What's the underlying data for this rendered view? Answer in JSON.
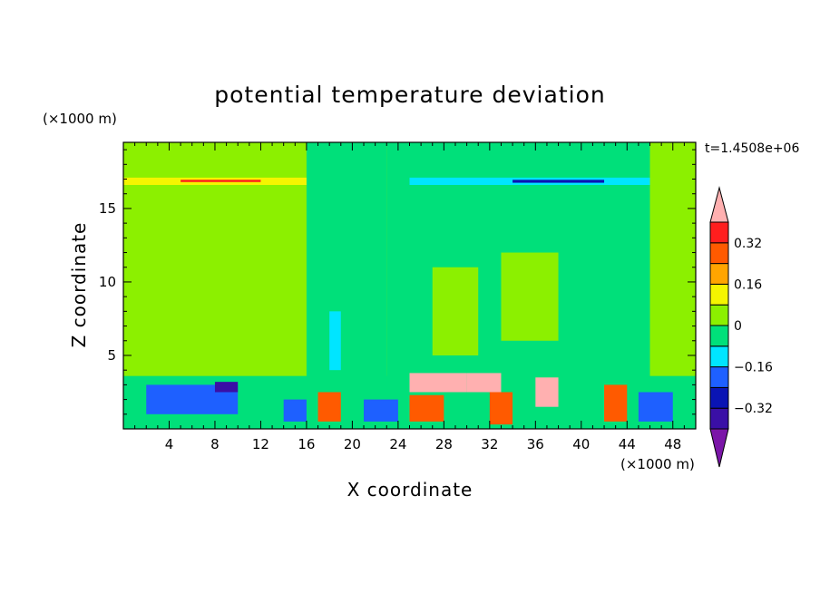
{
  "chart_data": {
    "type": "heatmap",
    "title": "potential temperature deviation",
    "xlabel": "X coordinate",
    "ylabel": "Z coordinate",
    "x_unit": "(×1000 m)",
    "y_unit": "(×1000 m)",
    "time_label": "t=1.4508e+06",
    "xlim": [
      0,
      50
    ],
    "ylim": [
      0,
      19.5
    ],
    "x_ticks": [
      {
        "value": 4,
        "label": "4"
      },
      {
        "value": 8,
        "label": "8"
      },
      {
        "value": 12,
        "label": "12"
      },
      {
        "value": 16,
        "label": "16"
      },
      {
        "value": 20,
        "label": "20"
      },
      {
        "value": 24,
        "label": "24"
      },
      {
        "value": 28,
        "label": "28"
      },
      {
        "value": 32,
        "label": "32"
      },
      {
        "value": 36,
        "label": "36"
      },
      {
        "value": 40,
        "label": "40"
      },
      {
        "value": 44,
        "label": "44"
      },
      {
        "value": 48,
        "label": "48"
      }
    ],
    "y_ticks": [
      {
        "value": 5,
        "label": "5"
      },
      {
        "value": 10,
        "label": "10"
      },
      {
        "value": 15,
        "label": "15"
      }
    ],
    "colorbar": {
      "levels": [
        -0.4,
        -0.32,
        -0.24,
        -0.16,
        -0.08,
        0,
        0.08,
        0.16,
        0.24,
        0.32,
        0.4
      ],
      "labels": [
        {
          "value": 0.32,
          "label": "0.32"
        },
        {
          "value": 0.16,
          "label": "0.16"
        },
        {
          "value": 0,
          "label": "0"
        },
        {
          "value": -0.16,
          "label": "−0.16"
        },
        {
          "value": -0.32,
          "label": "−0.32"
        }
      ],
      "colors": [
        "#7b16a8",
        "#3a0fa6",
        "#0a14b4",
        "#1e60ff",
        "#00e5ff",
        "#00e07a",
        "#8cf000",
        "#f5f500",
        "#ffa500",
        "#ff5a00",
        "#ff1e1e",
        "#ffb0b0"
      ]
    },
    "regions": [
      {
        "x": [
          0,
          50
        ],
        "y": [
          0,
          19.5
        ],
        "value": 0.04
      },
      {
        "x": [
          16,
          23
        ],
        "y": [
          3.5,
          19.5
        ],
        "value": -0.04
      },
      {
        "x": [
          23,
          46
        ],
        "y": [
          3.5,
          19.5
        ],
        "value": -0.04
      },
      {
        "x": [
          27,
          31
        ],
        "y": [
          5,
          11
        ],
        "value": 0.04
      },
      {
        "x": [
          33,
          38
        ],
        "y": [
          6,
          12
        ],
        "value": 0.04
      },
      {
        "x": [
          18,
          19
        ],
        "y": [
          4,
          8
        ],
        "value": -0.12
      },
      {
        "x": [
          0,
          16
        ],
        "y": [
          16.6,
          17.1
        ],
        "value": 0.12
      },
      {
        "x": [
          5,
          12
        ],
        "y": [
          16.8,
          16.95
        ],
        "value": 0.36
      },
      {
        "x": [
          25,
          46
        ],
        "y": [
          16.6,
          17.1
        ],
        "value": -0.12
      },
      {
        "x": [
          34,
          42
        ],
        "y": [
          16.75,
          16.95
        ],
        "value": -0.28
      },
      {
        "x": [
          0,
          50
        ],
        "y": [
          0,
          3.6
        ],
        "value": -0.06
      },
      {
        "x": [
          2,
          10
        ],
        "y": [
          1,
          3
        ],
        "value": -0.2
      },
      {
        "x": [
          8,
          10
        ],
        "y": [
          2.5,
          3.2
        ],
        "value": -0.36
      },
      {
        "x": [
          17,
          19
        ],
        "y": [
          0.5,
          2.5
        ],
        "value": 0.3
      },
      {
        "x": [
          25,
          28
        ],
        "y": [
          0.5,
          2.3
        ],
        "value": 0.3
      },
      {
        "x": [
          32,
          34
        ],
        "y": [
          0.3,
          2.5
        ],
        "value": 0.3
      },
      {
        "x": [
          25,
          30
        ],
        "y": [
          2.5,
          3.8
        ],
        "value": 0.4
      },
      {
        "x": [
          30,
          33
        ],
        "y": [
          2.5,
          3.8
        ],
        "value": 0.4
      },
      {
        "x": [
          36,
          38
        ],
        "y": [
          1.5,
          3.5
        ],
        "value": 0.4
      },
      {
        "x": [
          42,
          44
        ],
        "y": [
          0.5,
          3
        ],
        "value": 0.3
      },
      {
        "x": [
          14,
          16
        ],
        "y": [
          0.5,
          2
        ],
        "value": -0.2
      },
      {
        "x": [
          21,
          24
        ],
        "y": [
          0.5,
          2
        ],
        "value": -0.2
      },
      {
        "x": [
          45,
          48
        ],
        "y": [
          0.5,
          2.5
        ],
        "value": -0.2
      }
    ]
  }
}
